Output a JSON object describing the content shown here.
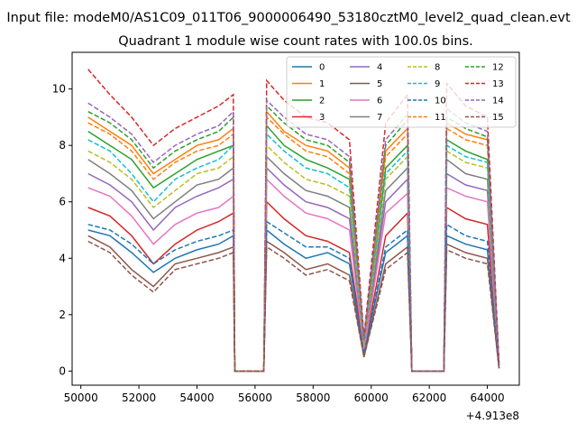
{
  "figure": {
    "suptitle": "Input file: modeM0/AS1C09_011T06_9000006490_53180cztM0_level2_quad_clean.evt"
  },
  "chart_data": {
    "type": "line",
    "title": "Quadrant 1 module wise count rates with 100.0s bins.",
    "xlabel": "",
    "ylabel": "",
    "x_offset_label": "+4.913e8",
    "x_offset": 491300000,
    "xlim": [
      49700,
      65100
    ],
    "ylim": [
      -0.5,
      11.3
    ],
    "x_ticks": [
      50000,
      52000,
      54000,
      56000,
      58000,
      60000,
      62000,
      64000
    ],
    "x_tick_labels": [
      "50000",
      "52000",
      "54000",
      "56000",
      "58000",
      "60000",
      "62000",
      "64000"
    ],
    "y_ticks": [
      0,
      2,
      4,
      6,
      8,
      10
    ],
    "y_tick_labels": [
      "0",
      "2",
      "4",
      "6",
      "8",
      "10"
    ],
    "grid": false,
    "legend_position": "top-right",
    "legend_columns": 4,
    "x": [
      50250,
      51000,
      51750,
      52500,
      53250,
      54000,
      54750,
      55250,
      55300,
      56300,
      56400,
      57000,
      57750,
      58500,
      59250,
      59750,
      60500,
      61250,
      61400,
      62500,
      62600,
      63250,
      64000,
      64400
    ],
    "series": [
      {
        "name": "0",
        "color": "#1f77b4",
        "dash": "solid",
        "values": [
          5.0,
          4.8,
          4.2,
          3.5,
          4.0,
          4.3,
          4.5,
          4.8,
          0,
          0,
          5.0,
          4.5,
          4.0,
          4.2,
          3.8,
          0.6,
          4.2,
          4.8,
          0,
          0,
          4.8,
          4.5,
          4.3,
          0.1
        ]
      },
      {
        "name": "1",
        "color": "#ff7f0e",
        "dash": "solid",
        "values": [
          9.0,
          8.5,
          8.0,
          7.0,
          7.5,
          8.0,
          8.2,
          8.6,
          0,
          0,
          9.2,
          8.5,
          8.0,
          7.8,
          7.2,
          1.0,
          7.8,
          8.6,
          0,
          0,
          8.8,
          8.4,
          8.2,
          0.2
        ]
      },
      {
        "name": "2",
        "color": "#2ca02c",
        "dash": "solid",
        "values": [
          8.5,
          8.0,
          7.5,
          6.5,
          7.0,
          7.5,
          7.8,
          8.0,
          0,
          0,
          8.7,
          8.0,
          7.5,
          7.2,
          6.8,
          0.9,
          7.2,
          8.0,
          0,
          0,
          8.2,
          7.8,
          7.5,
          0.2
        ]
      },
      {
        "name": "3",
        "color": "#d62728",
        "dash": "solid",
        "values": [
          5.8,
          5.5,
          4.8,
          3.8,
          4.5,
          5.0,
          5.3,
          5.6,
          0,
          0,
          6.0,
          5.4,
          4.8,
          4.6,
          4.2,
          0.7,
          4.8,
          5.6,
          0,
          0,
          5.8,
          5.4,
          5.2,
          0.1
        ]
      },
      {
        "name": "4",
        "color": "#9467bd",
        "dash": "solid",
        "values": [
          7.0,
          6.6,
          6.0,
          5.0,
          5.8,
          6.2,
          6.5,
          6.8,
          0,
          0,
          7.2,
          6.6,
          6.0,
          5.8,
          5.4,
          0.8,
          6.0,
          6.8,
          0,
          0,
          7.0,
          6.6,
          6.4,
          0.1
        ]
      },
      {
        "name": "5",
        "color": "#8c564b",
        "dash": "solid",
        "values": [
          4.8,
          4.4,
          3.6,
          3.0,
          3.8,
          4.0,
          4.2,
          4.4,
          0,
          0,
          4.6,
          4.2,
          3.6,
          3.8,
          3.4,
          0.5,
          3.8,
          4.4,
          0,
          0,
          4.5,
          4.2,
          4.0,
          0.1
        ]
      },
      {
        "name": "6",
        "color": "#e377c2",
        "dash": "solid",
        "values": [
          6.5,
          6.2,
          5.5,
          4.5,
          5.2,
          5.6,
          5.8,
          6.2,
          0,
          0,
          6.8,
          6.2,
          5.6,
          5.4,
          5.0,
          0.7,
          5.6,
          6.3,
          0,
          0,
          6.5,
          6.2,
          6.0,
          0.1
        ]
      },
      {
        "name": "7",
        "color": "#7f7f7f",
        "dash": "solid",
        "values": [
          7.5,
          7.0,
          6.4,
          5.4,
          6.0,
          6.6,
          6.8,
          7.2,
          0,
          0,
          7.6,
          7.0,
          6.4,
          6.2,
          5.8,
          0.9,
          6.4,
          7.2,
          0,
          0,
          7.5,
          7.0,
          6.8,
          0.2
        ]
      },
      {
        "name": "8",
        "color": "#bcbd22",
        "dash": "dashed",
        "values": [
          7.8,
          7.4,
          6.8,
          5.8,
          6.4,
          7.0,
          7.2,
          7.6,
          0,
          0,
          8.0,
          7.4,
          6.8,
          6.6,
          6.2,
          0.9,
          6.8,
          7.6,
          0,
          0,
          7.8,
          7.4,
          7.2,
          0.2
        ]
      },
      {
        "name": "9",
        "color": "#17becf",
        "dash": "dashed",
        "values": [
          8.2,
          7.8,
          7.0,
          6.0,
          6.8,
          7.2,
          7.5,
          8.0,
          0,
          0,
          8.4,
          7.8,
          7.2,
          7.0,
          6.5,
          1.0,
          7.0,
          7.8,
          0,
          0,
          8.0,
          7.6,
          7.4,
          0.2
        ]
      },
      {
        "name": "10",
        "color": "#1f77b4",
        "dash": "dashed",
        "values": [
          5.2,
          5.0,
          4.5,
          3.8,
          4.3,
          4.6,
          4.8,
          5.0,
          0,
          0,
          5.3,
          4.9,
          4.4,
          4.4,
          4.0,
          0.6,
          4.4,
          5.0,
          0,
          0,
          5.2,
          4.8,
          4.6,
          0.1
        ]
      },
      {
        "name": "11",
        "color": "#ff7f0e",
        "dash": "dashed",
        "values": [
          8.8,
          8.4,
          7.8,
          6.8,
          7.4,
          7.8,
          8.0,
          8.4,
          0,
          0,
          9.0,
          8.4,
          7.8,
          7.6,
          7.0,
          1.0,
          7.6,
          8.4,
          0,
          0,
          8.6,
          8.2,
          8.0,
          0.2
        ]
      },
      {
        "name": "12",
        "color": "#2ca02c",
        "dash": "dashed",
        "values": [
          9.2,
          8.8,
          8.2,
          7.2,
          7.8,
          8.2,
          8.5,
          9.0,
          0,
          0,
          9.4,
          8.8,
          8.2,
          8.0,
          7.4,
          1.1,
          8.0,
          8.9,
          0,
          0,
          9.0,
          8.6,
          8.3,
          0.2
        ]
      },
      {
        "name": "13",
        "color": "#d62728",
        "dash": "dashed",
        "values": [
          10.7,
          9.8,
          9.0,
          8.0,
          8.6,
          9.0,
          9.4,
          9.8,
          0,
          0,
          10.3,
          9.6,
          9.0,
          8.8,
          8.2,
          1.2,
          8.8,
          9.8,
          0,
          0,
          10.2,
          9.4,
          9.0,
          0.3
        ]
      },
      {
        "name": "14",
        "color": "#9467bd",
        "dash": "dashed",
        "values": [
          9.5,
          9.0,
          8.4,
          7.4,
          8.0,
          8.4,
          8.7,
          9.2,
          0,
          0,
          9.6,
          9.0,
          8.4,
          8.2,
          7.6,
          1.1,
          8.2,
          9.1,
          0,
          0,
          9.3,
          8.8,
          8.5,
          0.2
        ]
      },
      {
        "name": "15",
        "color": "#8c564b",
        "dash": "dashed",
        "values": [
          4.6,
          4.2,
          3.4,
          2.8,
          3.6,
          3.8,
          4.0,
          4.2,
          0,
          0,
          4.4,
          4.0,
          3.4,
          3.6,
          3.2,
          0.5,
          3.6,
          4.2,
          0,
          0,
          4.3,
          4.0,
          3.8,
          0.1
        ]
      }
    ]
  }
}
